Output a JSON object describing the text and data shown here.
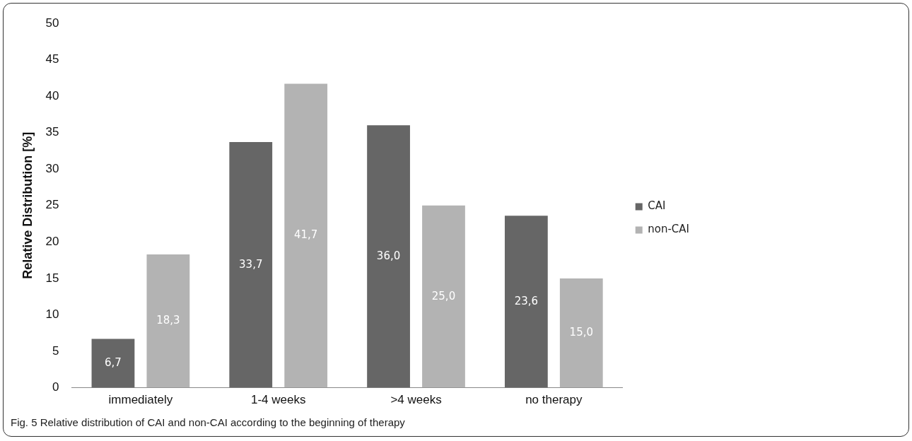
{
  "chart_data": {
    "type": "bar",
    "ylabel": "Relative Distribution [%]",
    "categories": [
      "immediately",
      "1-4 weeks",
      ">4 weeks",
      "no therapy"
    ],
    "series": [
      {
        "name": "CAI",
        "color": "#666666",
        "values": [
          6.7,
          33.7,
          36.0,
          23.6
        ],
        "value_labels": [
          "6,7",
          "33,7",
          "36,0",
          "23,6"
        ]
      },
      {
        "name": "non-CAI",
        "color": "#b3b3b3",
        "values": [
          18.3,
          41.7,
          25.0,
          15.0
        ],
        "value_labels": [
          "18,3",
          "41,7",
          "25,0",
          "15,0"
        ]
      }
    ],
    "ylim": [
      0,
      50
    ],
    "yticks": [
      0,
      5,
      10,
      15,
      20,
      25,
      30,
      35,
      40,
      45,
      50
    ],
    "grid": false,
    "legend": "right",
    "annotations": [
      "Fig. 5 Relative distribution of CAI and non-CAI according to the beginning of therapy"
    ]
  }
}
